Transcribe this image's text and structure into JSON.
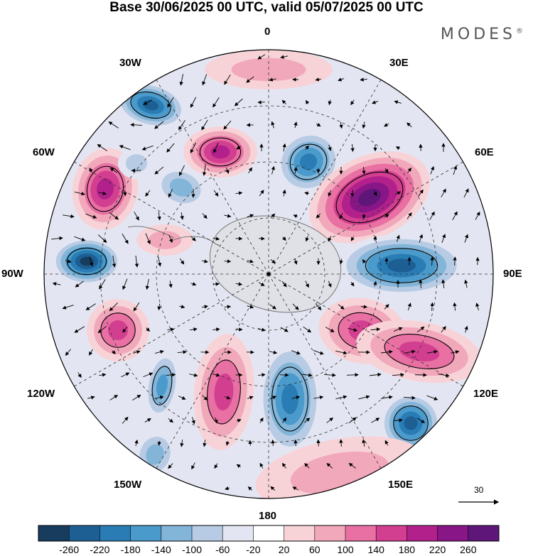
{
  "header": {
    "title": "Base 30/06/2025 00 UTC, valid 05/07/2025 00 UTC",
    "brand": "MODES",
    "brand_mark": "®"
  },
  "map": {
    "projection": "south-polar-stereographic",
    "longitude_labels": [
      "0",
      "30E",
      "60E",
      "90E",
      "120E",
      "150E",
      "180",
      "150W",
      "120W",
      "90W",
      "60W",
      "30W"
    ],
    "field_colors": {
      "land_outline": "#777777",
      "grid_line": "#333333",
      "vector": "#000000"
    }
  },
  "vector_scale": {
    "value": "30"
  },
  "colorbar": {
    "ticks": [
      "-260",
      "-220",
      "-180",
      "-140",
      "-100",
      "-60",
      "-20",
      "20",
      "60",
      "100",
      "140",
      "180",
      "220",
      "260"
    ],
    "colors": [
      "#173c5e",
      "#1d5f93",
      "#2a7cb5",
      "#4a9acb",
      "#82b5d8",
      "#b7cbe4",
      "#e3e6f2",
      "#ffffff",
      "#f7d3d8",
      "#f2a8bb",
      "#e870a3",
      "#d33f90",
      "#b2208b",
      "#881686",
      "#5e1679"
    ]
  }
}
